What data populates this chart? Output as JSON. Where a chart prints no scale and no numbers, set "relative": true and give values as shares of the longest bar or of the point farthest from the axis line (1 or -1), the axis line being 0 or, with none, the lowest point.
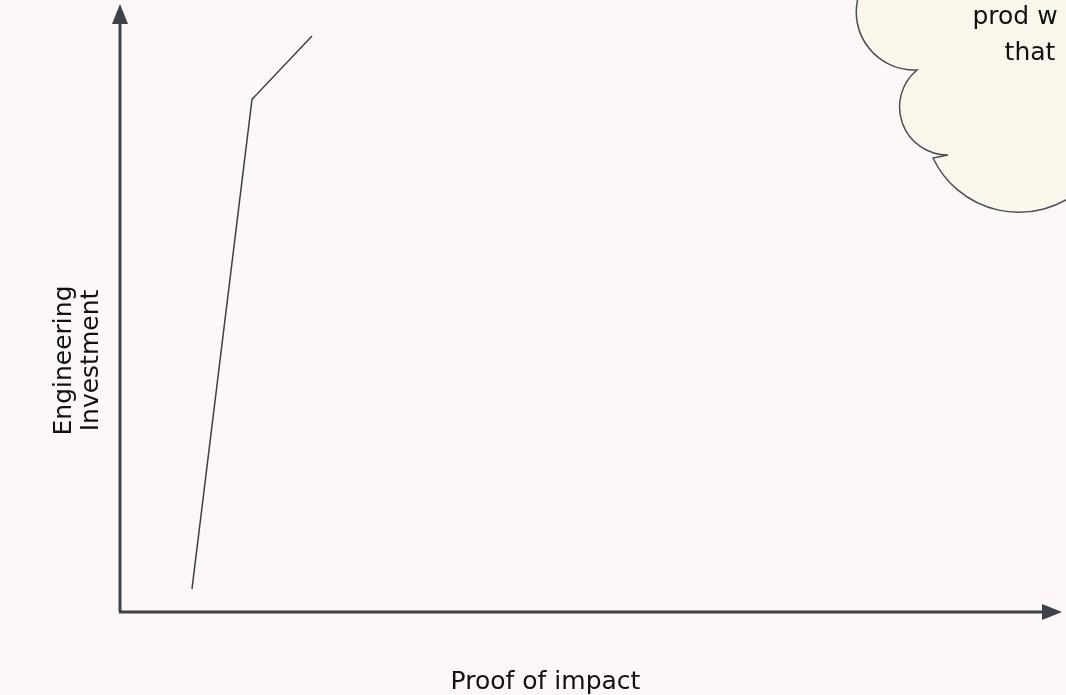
{
  "chart_data": {
    "type": "line",
    "xlabel": "Proof of impact",
    "ylabel": "Engineering Investment",
    "categories": [
      null,
      null,
      null
    ],
    "relative": true,
    "series": [
      {
        "color": "#3c4046",
        "values": [
          0.04,
          0.89,
          1
        ]
      }
    ],
    "annotations": [
      "prod w",
      "that"
    ]
  }
}
